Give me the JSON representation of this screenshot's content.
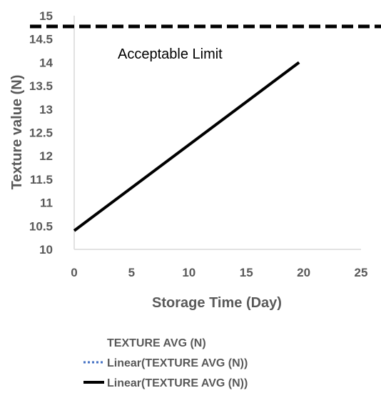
{
  "chart_data": {
    "type": "line",
    "title": "",
    "xlabel": "Storage Time (Day)",
    "ylabel": "Texture value (N)",
    "xlim": [
      0,
      25
    ],
    "ylim": [
      10,
      15
    ],
    "x_ticks": [
      "0",
      "5",
      "10",
      "15",
      "20",
      "25"
    ],
    "y_ticks": [
      "10",
      "10.5",
      "11",
      "11.5",
      "12",
      "12.5",
      "13",
      "13.5",
      "14",
      "14.5",
      "15"
    ],
    "x_tick_values": [
      0,
      5,
      10,
      15,
      20,
      25
    ],
    "y_tick_values": [
      10,
      10.5,
      11,
      11.5,
      12,
      12.5,
      13,
      13.5,
      14,
      14.5,
      15
    ],
    "grid": false,
    "legend_position": "bottom",
    "series": [
      {
        "name": "Linear(TEXTURE AVG (N))",
        "style": "solid",
        "color": "#000000",
        "x": [
          0,
          19.6
        ],
        "y": [
          10.4,
          14
        ]
      }
    ],
    "reference_line": {
      "label": "Acceptable Limit",
      "y": 14.77,
      "style": "dashed",
      "color": "#000000"
    },
    "legend": [
      {
        "label": "TEXTURE AVG (N)",
        "marker": "none",
        "color": ""
      },
      {
        "label": "Linear(TEXTURE AVG (N))",
        "marker": "dotted-line",
        "color": "#4472c4"
      },
      {
        "label": "Linear(TEXTURE AVG (N))",
        "marker": "solid-line",
        "color": "#000000"
      }
    ]
  }
}
